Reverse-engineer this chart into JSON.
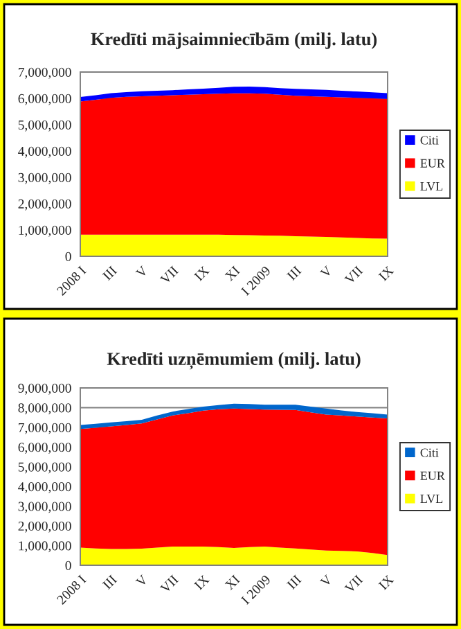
{
  "chart_data": [
    {
      "type": "area",
      "title": "Kredīti mājsaimniecībām (milj. latu)",
      "stacked": true,
      "grid": "y",
      "legend": "right",
      "categories": [
        "2008 I",
        null,
        "III",
        null,
        "V",
        null,
        "VII",
        null,
        "IX",
        null,
        "XI",
        null,
        "I 2009",
        null,
        "III",
        null,
        "V",
        null,
        "VII",
        null,
        "IX"
      ],
      "ylim": [
        0,
        7000000
      ],
      "yticks": [
        0,
        {
          "value": 1000000,
          "label": "1,000,000"
        },
        {
          "value": 2000000,
          "label": "2,000,000"
        },
        {
          "value": 3000000,
          "label": "3,000,000"
        },
        {
          "value": 4000000,
          "label": "4,000,000"
        },
        {
          "value": 5000000,
          "label": "5,000,000"
        },
        {
          "value": 6000000,
          "label": "6,000,000"
        },
        {
          "value": 7000000,
          "label": "7,000,000"
        }
      ],
      "series": [
        {
          "name": "LVL",
          "color": "#ffff00",
          "values": [
            820000,
            820000,
            820000,
            820000,
            820000,
            820000,
            820000,
            820000,
            820000,
            820000,
            810000,
            800000,
            790000,
            780000,
            760000,
            750000,
            740000,
            720000,
            700000,
            680000,
            670000
          ]
        },
        {
          "name": "EUR",
          "color": "#ff0000",
          "values": [
            5060000,
            5130000,
            5200000,
            5240000,
            5260000,
            5280000,
            5300000,
            5320000,
            5340000,
            5360000,
            5380000,
            5390000,
            5390000,
            5360000,
            5340000,
            5330000,
            5320000,
            5320000,
            5320000,
            5320000,
            5310000
          ]
        },
        {
          "name": "Citi",
          "color": "#0000ff",
          "values": [
            170000,
            170000,
            180000,
            180000,
            190000,
            190000,
            190000,
            200000,
            210000,
            220000,
            250000,
            260000,
            250000,
            250000,
            260000,
            260000,
            260000,
            250000,
            240000,
            230000,
            220000
          ]
        }
      ]
    },
    {
      "type": "area",
      "title": "Kredīti uzņēmumiem (milj. latu)",
      "stacked": true,
      "grid": "y",
      "legend": "right",
      "categories": [
        "2008 I",
        null,
        "III",
        null,
        "V",
        null,
        "VII",
        null,
        "IX",
        null,
        "XI",
        null,
        "I 2009",
        null,
        "III",
        null,
        "V",
        null,
        "VII",
        null,
        "IX"
      ],
      "ylim": [
        0,
        9000000
      ],
      "yticks": [
        0,
        {
          "value": 1000000,
          "label": "1,000,000"
        },
        {
          "value": 2000000,
          "label": "2,000,000"
        },
        {
          "value": 3000000,
          "label": "3,000,000"
        },
        {
          "value": 4000000,
          "label": "4,000,000"
        },
        {
          "value": 5000000,
          "label": "5,000,000"
        },
        {
          "value": 6000000,
          "label": "6,000,000"
        },
        {
          "value": 7000000,
          "label": "7,000,000"
        },
        {
          "value": 8000000,
          "label": "8,000,000"
        },
        {
          "value": 9000000,
          "label": "9,000,000"
        }
      ],
      "series": [
        {
          "name": "LVL",
          "color": "#ffff00",
          "values": [
            900000,
            850000,
            830000,
            830000,
            840000,
            900000,
            950000,
            950000,
            950000,
            920000,
            880000,
            920000,
            950000,
            900000,
            850000,
            800000,
            750000,
            730000,
            700000,
            620000,
            520000
          ]
        },
        {
          "name": "EUR",
          "color": "#ff0000",
          "values": [
            6020000,
            6130000,
            6220000,
            6290000,
            6360000,
            6500000,
            6650000,
            6770000,
            6900000,
            7000000,
            7070000,
            7010000,
            6950000,
            6990000,
            7030000,
            6960000,
            6900000,
            6870000,
            6850000,
            6880000,
            6930000
          ]
        },
        {
          "name": "Citi",
          "color": "#0066cc",
          "values": [
            200000,
            200000,
            200000,
            190000,
            180000,
            200000,
            200000,
            210000,
            200000,
            210000,
            250000,
            250000,
            250000,
            260000,
            270000,
            290000,
            300000,
            260000,
            230000,
            220000,
            200000
          ]
        }
      ]
    }
  ]
}
